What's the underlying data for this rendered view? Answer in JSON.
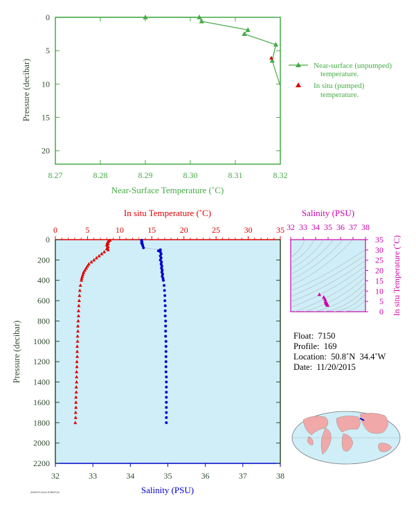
{
  "colors": {
    "near_surface": "#44aa44",
    "insitu_temp": "#dd0000",
    "salinity": "#0000cc",
    "salinity_axis": "#cc00aa",
    "axis_green": "#44aa44",
    "plot_bg": "#cfeef7",
    "label_dark": "#2e4a2e"
  },
  "chart_data": [
    {
      "type": "line",
      "xlabel": "Near-Surface Temperature (˚C)",
      "ylabel": "Pressure (decibar)",
      "xlim": [
        8.27,
        8.32
      ],
      "ylim": [
        22,
        0
      ],
      "xticks": [
        "8.27",
        "8.28",
        "8.29",
        "8.30",
        "8.31",
        "8.32"
      ],
      "yticks": [
        "0",
        "5",
        "10",
        "15",
        "20"
      ],
      "legend_position": "right",
      "series": [
        {
          "name": "Near-surface (unpumped) temperature.",
          "x": [
            8.27,
            8.29,
            8.302,
            8.3025,
            8.3128,
            8.312,
            8.319,
            8.3182,
            8.3205
          ],
          "y": [
            -0.5,
            -0.3,
            0.0,
            0.6,
            1.9,
            2.5,
            4.1,
            6.5,
            10.3
          ]
        },
        {
          "name": "In situ (pumped) temperature.",
          "x": [
            8.318
          ],
          "y": [
            6.1
          ]
        }
      ]
    },
    {
      "type": "scatter",
      "ylabel": "Pressure (decibar)",
      "top_xlabel": "In situ Temperature (˚C)",
      "bottom_xlabel": "Salinity (PSU)",
      "temp_lim": [
        0,
        35
      ],
      "sal_lim": [
        32,
        38
      ],
      "ylim": [
        2200,
        0
      ],
      "temp_ticks": [
        "0",
        "5",
        "10",
        "15",
        "20",
        "25",
        "30",
        "35"
      ],
      "sal_ticks": [
        "32",
        "33",
        "34",
        "35",
        "36",
        "37",
        "38"
      ],
      "yticks": [
        "0",
        "200",
        "400",
        "600",
        "800",
        "1000",
        "1200",
        "1400",
        "1600",
        "1800",
        "2000",
        "2200"
      ],
      "temperature": {
        "p": [
          6,
          12,
          20,
          30,
          40,
          50,
          60,
          70,
          80,
          90,
          100,
          120,
          140,
          160,
          180,
          200,
          220,
          240,
          260,
          280,
          300,
          320,
          340,
          360,
          380,
          400,
          450,
          500,
          550,
          600,
          650,
          700,
          750,
          800,
          850,
          900,
          950,
          1000,
          1050,
          1100,
          1150,
          1200,
          1250,
          1300,
          1350,
          1400,
          1450,
          1500,
          1550,
          1600,
          1650,
          1700,
          1750,
          1800
        ],
        "t": [
          8.5,
          8.3,
          8.2,
          8.1,
          8.2,
          8.0,
          8.1,
          8.2,
          8.1,
          8.0,
          8.2,
          7.6,
          7.2,
          6.8,
          6.4,
          6.0,
          5.6,
          5.2,
          5.0,
          4.8,
          4.6,
          4.4,
          4.3,
          4.2,
          4.1,
          4.05,
          3.9,
          3.8,
          3.75,
          3.7,
          3.65,
          3.6,
          3.6,
          3.55,
          3.5,
          3.5,
          3.45,
          3.45,
          3.4,
          3.4,
          3.4,
          3.35,
          3.35,
          3.3,
          3.3,
          3.3,
          3.25,
          3.25,
          3.2,
          3.2,
          3.2,
          3.15,
          3.15,
          3.1
        ]
      },
      "salinity": {
        "p": [
          6,
          15,
          25,
          35,
          45,
          60,
          80,
          100,
          110,
          120,
          140,
          160,
          180,
          200,
          220,
          240,
          260,
          280,
          300,
          320,
          340,
          360,
          380,
          400,
          450,
          500,
          550,
          600,
          650,
          700,
          750,
          800,
          850,
          900,
          950,
          1000,
          1050,
          1100,
          1150,
          1200,
          1250,
          1300,
          1350,
          1400,
          1450,
          1500,
          1550,
          1600,
          1650,
          1700,
          1750,
          1800
        ],
        "s": [
          34.3,
          34.3,
          34.31,
          34.3,
          34.32,
          34.33,
          34.35,
          34.8,
          34.75,
          34.8,
          34.82,
          34.8,
          34.82,
          34.8,
          34.83,
          34.82,
          34.84,
          34.83,
          34.85,
          34.84,
          34.86,
          34.85,
          34.87,
          34.88,
          34.9,
          34.91,
          34.92,
          34.92,
          34.93,
          34.93,
          34.93,
          34.94,
          34.94,
          34.94,
          34.94,
          34.95,
          34.95,
          34.95,
          34.95,
          34.95,
          34.95,
          34.95,
          34.96,
          34.96,
          34.96,
          34.96,
          34.96,
          34.96,
          34.96,
          34.96,
          34.96,
          34.96
        ]
      }
    },
    {
      "type": "scatter",
      "top_xlabel": "Salinity (PSU)",
      "right_ylabel": "In situ Temperature (˚C)",
      "xlim": [
        32,
        38
      ],
      "ylim": [
        0,
        35
      ],
      "xticks": [
        "32",
        "33",
        "34",
        "35",
        "36",
        "37",
        "38"
      ],
      "yticks": [
        "0",
        "5",
        "10",
        "15",
        "20",
        "25",
        "30",
        "35"
      ],
      "points": {
        "s": [
          34.3,
          34.65,
          34.75,
          34.8,
          34.82,
          34.85,
          34.88,
          34.9,
          34.92,
          34.93,
          34.94,
          34.95,
          34.96
        ],
        "t": [
          8.3,
          7.0,
          6.0,
          5.0,
          4.6,
          4.2,
          4.0,
          3.8,
          3.6,
          3.5,
          3.4,
          3.3,
          3.1
        ]
      }
    }
  ],
  "legend": {
    "near_surface_line1": "Near-surface (unpumped)",
    "near_surface_line2": "temperature.",
    "insitu_line1": "In situ (pumped)",
    "insitu_line2": "temperature."
  },
  "info": {
    "float": "Float:  7150",
    "profile": "Profile:  169",
    "location": "Location:  50.8˚N  34.4˚W",
    "date": "Date:  11/20/2015"
  },
  "footer_id": "A0001F1A1A  E0B0F1A"
}
